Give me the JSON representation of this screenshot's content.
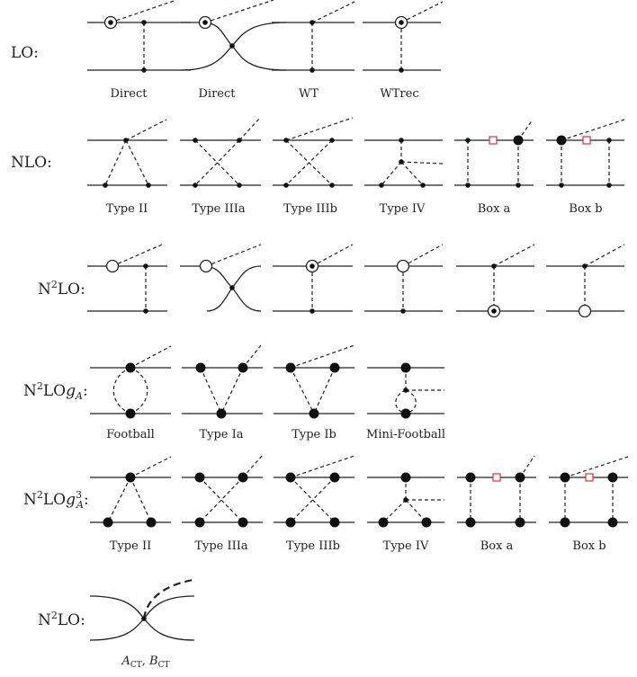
{
  "rows": [
    {
      "label_main": "LO",
      "label_sup": "",
      "label_g": "",
      "label_g_sup": "",
      "label_end": ":",
      "captions": [
        "Direct",
        "Direct",
        "WT",
        "WTrec"
      ]
    },
    {
      "label_main": "NLO",
      "label_sup": "",
      "label_g": "",
      "label_g_sup": "",
      "label_end": ":",
      "captions": [
        "Type II",
        "Type IIIa",
        "Type IIIb",
        "Type IV",
        "Box a",
        "Box b"
      ]
    },
    {
      "label_main": "N",
      "label_sup": "2",
      "label_rest": "LO",
      "label_g": "",
      "label_g_sup": "",
      "label_end": ":",
      "captions": []
    },
    {
      "label_main": "N",
      "label_sup": "2",
      "label_rest": "LO",
      "label_g": "g",
      "label_g_sub": "A",
      "label_g_sup": "",
      "label_end": ":",
      "captions": [
        "Football",
        "Type Ia",
        "Type Ib",
        "Mini-Football"
      ]
    },
    {
      "label_main": "N",
      "label_sup": "2",
      "label_rest": "LO",
      "label_g": "g",
      "label_g_sub": "A",
      "label_g_sup": "3",
      "label_end": ":",
      "captions": [
        "Type II",
        "Type IIIa",
        "Type IIIb",
        "Type IV",
        "Box a",
        "Box b"
      ]
    },
    {
      "label_main": "N",
      "label_sup": "2",
      "label_rest": "LO",
      "label_g": "",
      "label_g_sup": "",
      "label_end": ":",
      "captions": []
    }
  ],
  "ct_caption": {
    "a": "A",
    "a_sub": "CT",
    "sep": ", ",
    "b": "B",
    "b_sub": "CT"
  }
}
